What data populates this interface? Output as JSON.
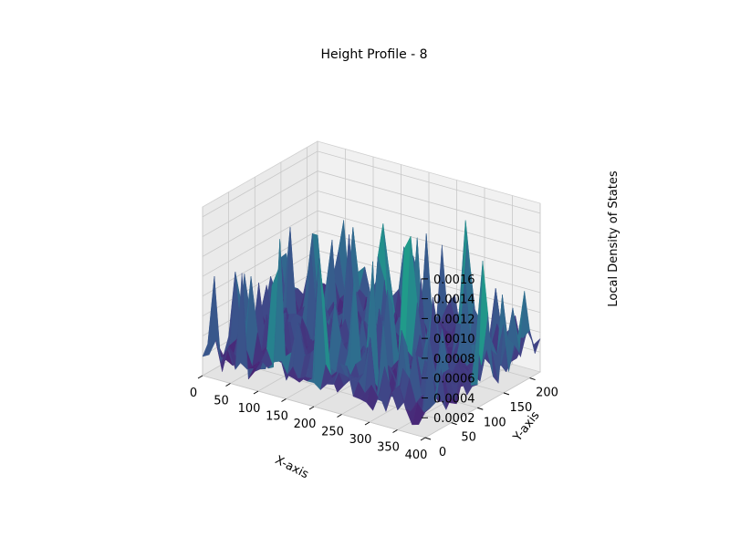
{
  "chart_data": {
    "type": "surface",
    "title": "Height Profile - 8",
    "xlabel": "X-axis",
    "ylabel": "Y-axis",
    "zlabel": "Local Density of States",
    "xlim": [
      0,
      400
    ],
    "ylim": [
      0,
      220
    ],
    "zlim": [
      0,
      0.0017
    ],
    "x_ticks": [
      "0",
      "50",
      "100",
      "150",
      "200",
      "250",
      "300",
      "350",
      "400"
    ],
    "y_ticks": [
      "0",
      "50",
      "100",
      "150",
      "200"
    ],
    "z_ticks": [
      "0.0002",
      "0.0004",
      "0.0006",
      "0.0008",
      "0.0010",
      "0.0012",
      "0.0014",
      "0.0016"
    ],
    "colormap": "viridis",
    "grid": true,
    "z_value_range": [
      0,
      0.0016
    ]
  }
}
